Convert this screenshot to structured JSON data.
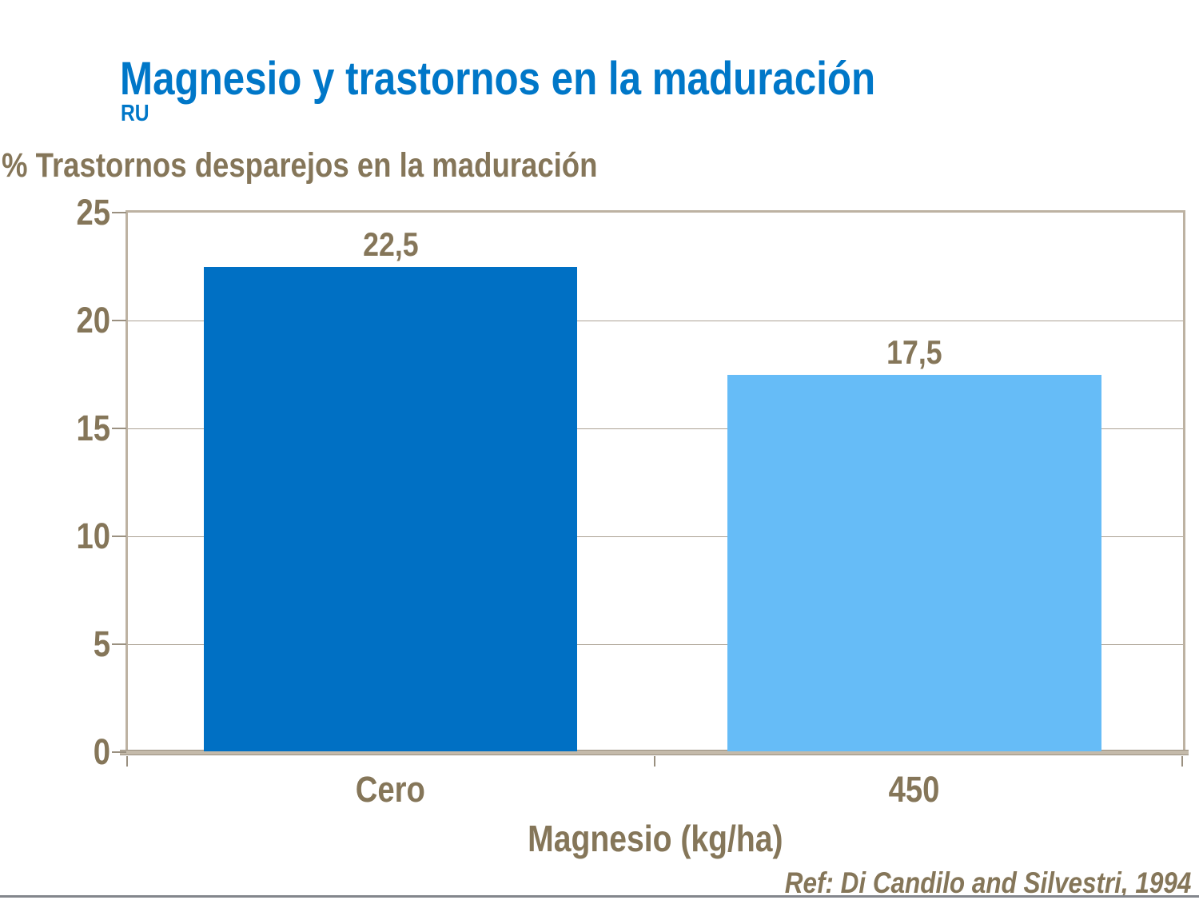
{
  "slide": {
    "title": "Magnesio y trastornos en la maduración",
    "subtitle": "RU",
    "reference": "Ref: Di Candilo and Silvestri, 1994"
  },
  "chart_data": {
    "type": "bar",
    "title": "% Trastornos desparejos en la maduración",
    "xlabel": "Magnesio (kg/ha)",
    "ylabel": "% Trastornos desparejos en la maduración",
    "categories": [
      "Cero",
      "450"
    ],
    "values": [
      22.5,
      17.5
    ],
    "value_labels": [
      "22,5",
      "17,5"
    ],
    "ylim": [
      0,
      25
    ],
    "yticks": [
      0,
      5,
      10,
      15,
      20,
      25
    ],
    "grid": true,
    "legend": false,
    "bar_colors": [
      "#0070C4",
      "#66BCF7"
    ]
  },
  "colors": {
    "title_blue": "#0077C8",
    "text_brown": "#857659",
    "axis_tan": "#BDB2A2",
    "gridline_tan": "#ACA294",
    "bottom_rule_gray": "#83868C"
  }
}
